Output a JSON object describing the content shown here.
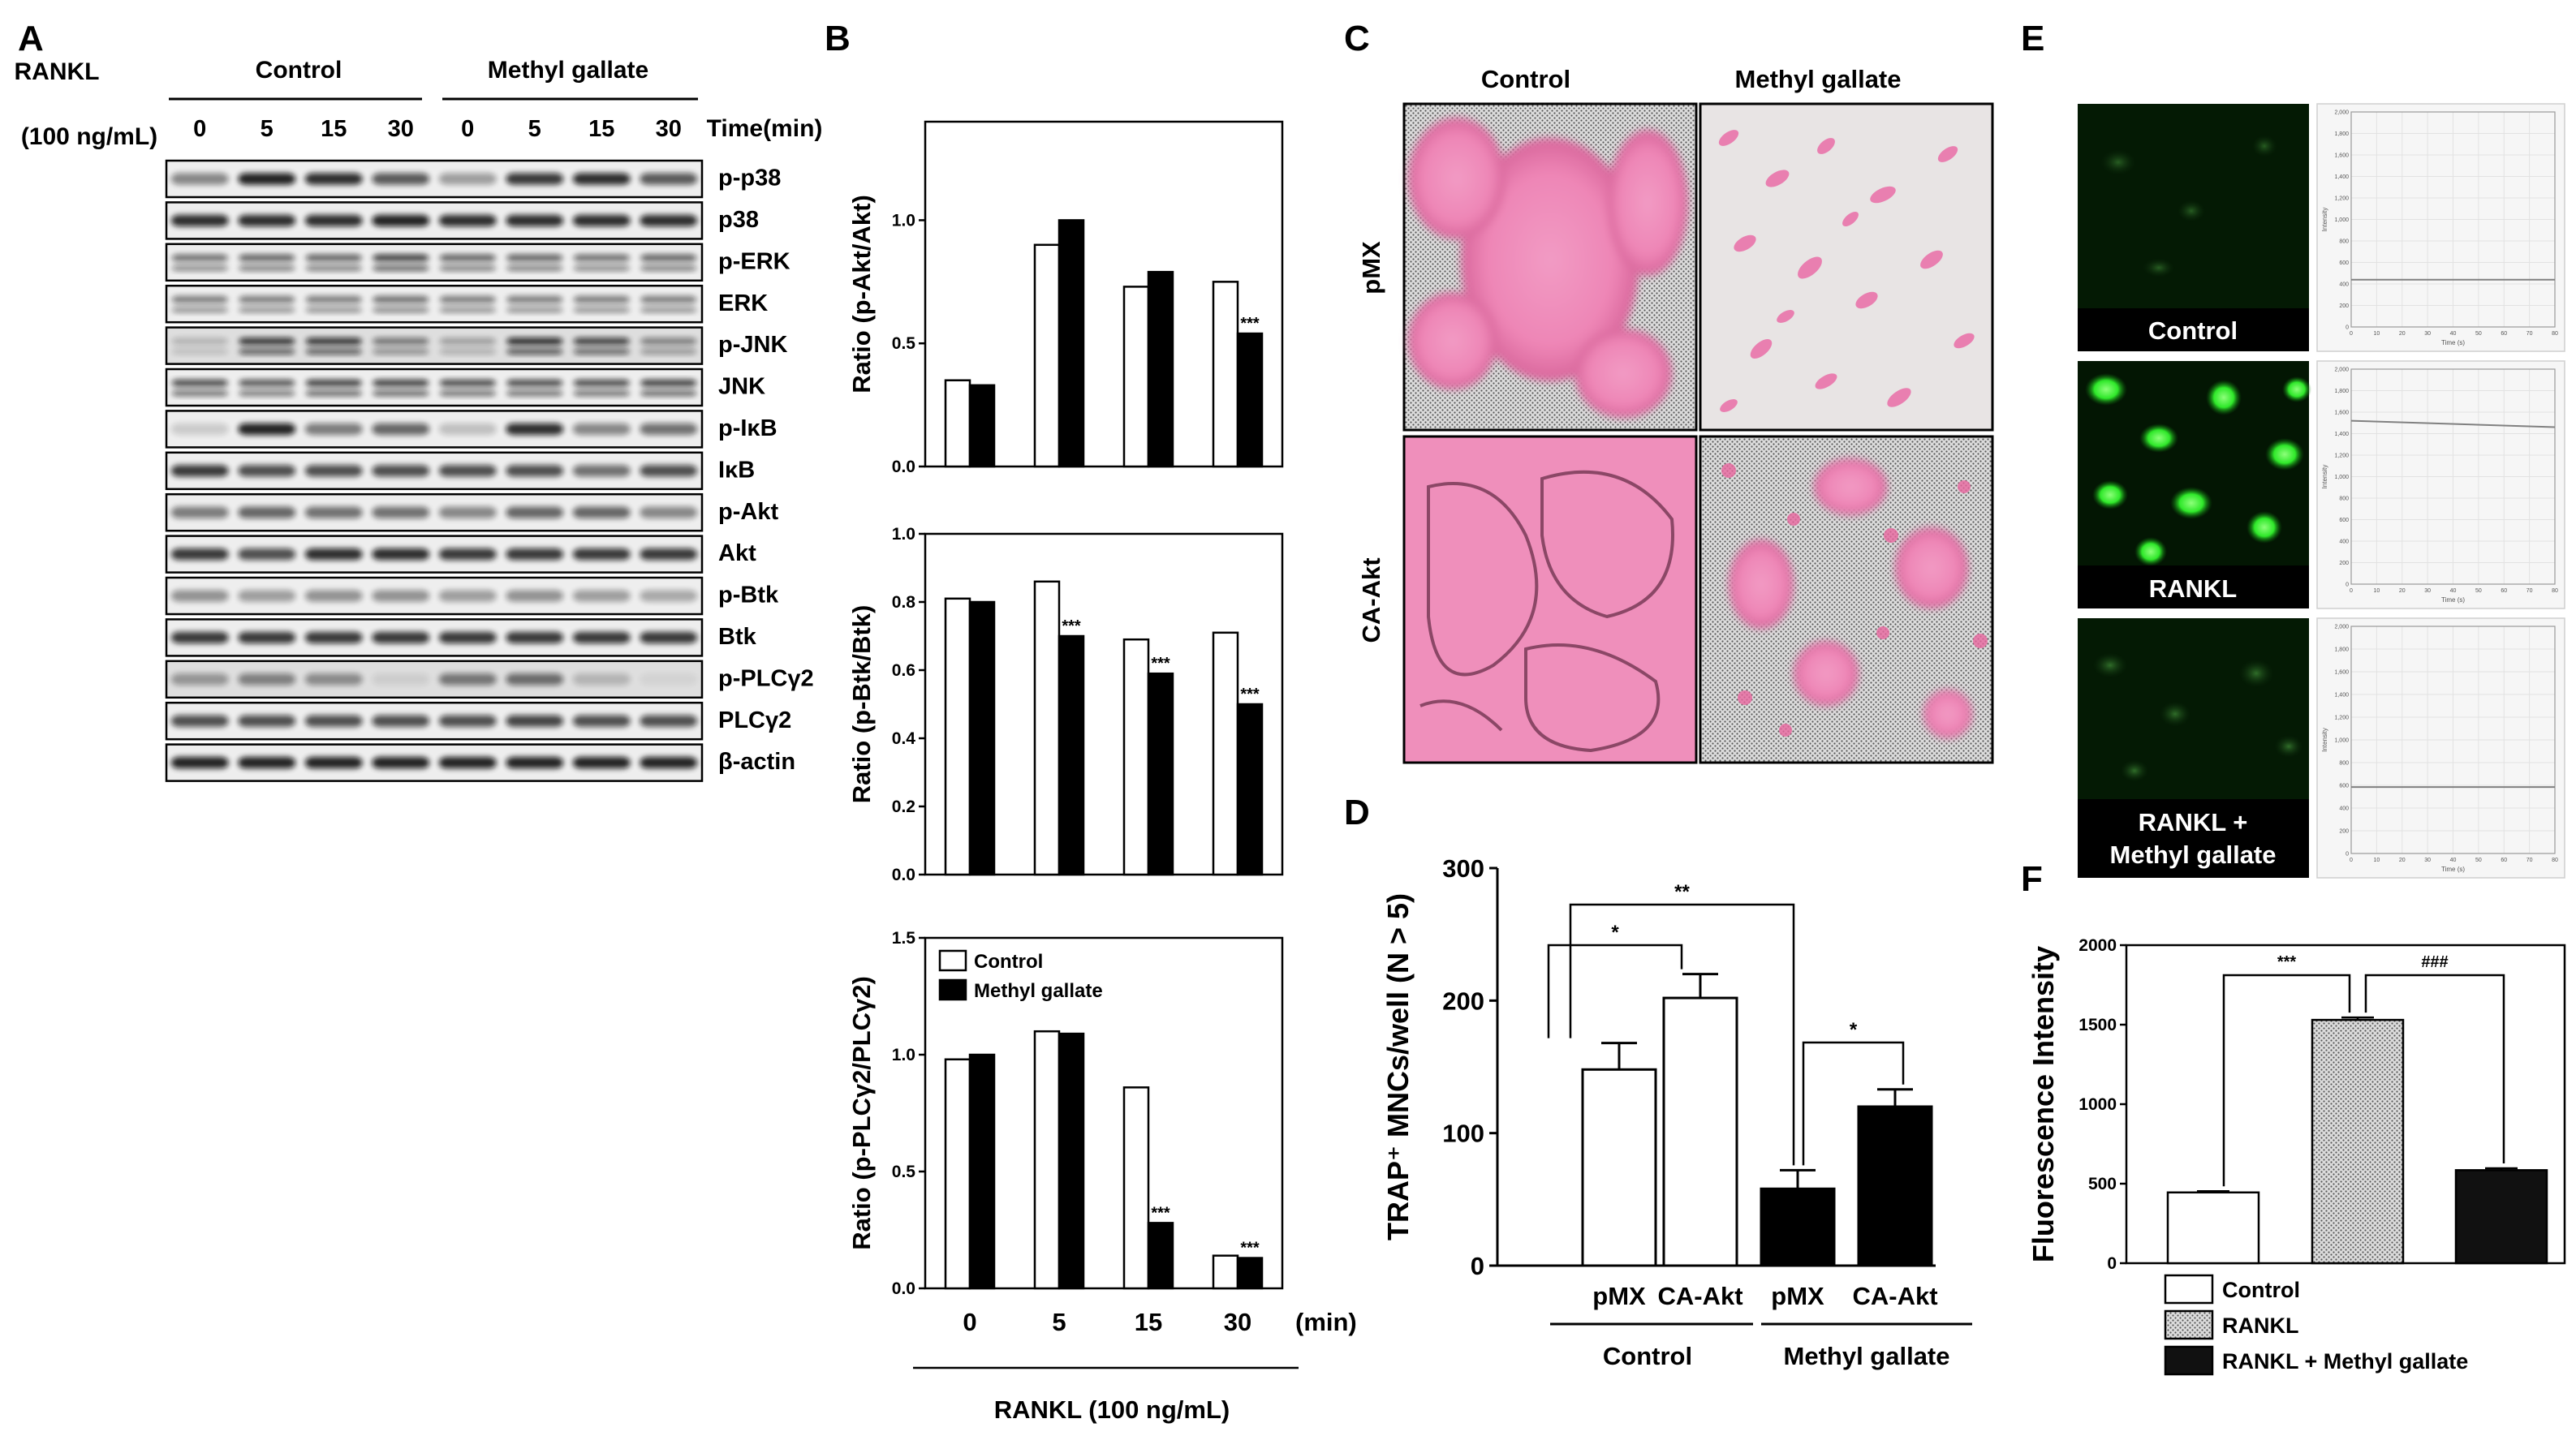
{
  "panel_labels": [
    "A",
    "B",
    "C",
    "D",
    "E",
    "F"
  ],
  "panelA": {
    "rankl_label": "RANKL",
    "rankl_conc": "(100 ng/mL)",
    "groups": [
      "Control",
      "Methyl gallate"
    ],
    "time_label": "Time(min)",
    "times": [
      "0",
      "5",
      "15",
      "30",
      "0",
      "5",
      "15",
      "30"
    ],
    "proteins": [
      "p-p38",
      "p38",
      "p-ERK",
      "ERK",
      "p-JNK",
      "JNK",
      "p-IκB",
      "IκB",
      "p-Akt",
      "Akt",
      "p-Btk",
      "Btk",
      "p-PLCγ2",
      "PLCγ2",
      "β-actin"
    ]
  },
  "panelC": {
    "columns": [
      "Control",
      "Methyl  gallate"
    ],
    "rows": [
      "pMX",
      "CA-Akt"
    ]
  },
  "panelE": {
    "labels": [
      "Control",
      "RANKL",
      "RANKL +",
      "Methyl gallate"
    ],
    "intensity_ticks": [
      "2,000",
      "1,800",
      "1,600",
      "1,400",
      "1,200",
      "1,000",
      "800",
      "600",
      "400",
      "200",
      "0"
    ],
    "time_ticks": [
      "0",
      "10",
      "20",
      "30",
      "40",
      "50",
      "60",
      "70",
      "80"
    ],
    "ylabel": "Intensity",
    "xlabel": "Time (s)"
  },
  "chart_data": [
    {
      "id": "B1",
      "type": "bar",
      "categories": [
        "0",
        "5",
        "15",
        "30"
      ],
      "series": [
        {
          "name": "Control",
          "values": [
            0.35,
            0.9,
            0.73,
            0.75
          ],
          "color": "#ffffff"
        },
        {
          "name": "Methyl gallate",
          "values": [
            0.33,
            1.0,
            0.79,
            0.54
          ],
          "color": "#000000"
        }
      ],
      "ylabel": "Ratio (p-Akt/Akt)",
      "ylim": [
        0,
        1.4
      ],
      "yticks": [
        "0.0",
        "0.5",
        "1.0"
      ],
      "annotations": [
        {
          "category": "30",
          "series": "Methyl gallate",
          "text": "***"
        }
      ]
    },
    {
      "id": "B2",
      "type": "bar",
      "categories": [
        "0",
        "5",
        "15",
        "30"
      ],
      "series": [
        {
          "name": "Control",
          "values": [
            0.81,
            0.86,
            0.69,
            0.71
          ],
          "color": "#ffffff"
        },
        {
          "name": "Methyl gallate",
          "values": [
            0.8,
            0.7,
            0.59,
            0.5
          ],
          "color": "#000000"
        }
      ],
      "ylabel": "Ratio (p-Btk/Btk)",
      "ylim": [
        0,
        1.0
      ],
      "yticks": [
        "0.0",
        "0.2",
        "0.4",
        "0.6",
        "0.8",
        "1.0"
      ],
      "annotations": [
        {
          "category": "5",
          "series": "Methyl gallate",
          "text": "***"
        },
        {
          "category": "15",
          "series": "Methyl gallate",
          "text": "***"
        },
        {
          "category": "30",
          "series": "Methyl gallate",
          "text": "***"
        }
      ]
    },
    {
      "id": "B3",
      "type": "bar",
      "categories": [
        "0",
        "5",
        "15",
        "30"
      ],
      "series": [
        {
          "name": "Control",
          "values": [
            0.98,
            1.1,
            0.86,
            0.14
          ],
          "color": "#ffffff"
        },
        {
          "name": "Methyl gallate",
          "values": [
            1.0,
            1.09,
            0.28,
            0.13
          ],
          "color": "#000000"
        }
      ],
      "ylabel": "Ratio (p-PLCγ2/PLCγ2)",
      "ylim": [
        0,
        1.5
      ],
      "yticks": [
        "0.0",
        "0.5",
        "1.0",
        "1.5"
      ],
      "xunit": "(min)",
      "xlabel": "RANKL (100 ng/mL)",
      "legend": [
        "Control",
        "Methyl gallate"
      ],
      "legend_position": "top-left",
      "annotations": [
        {
          "category": "15",
          "series": "Methyl gallate",
          "text": "***"
        },
        {
          "category": "30",
          "series": "Methyl gallate",
          "text": "***"
        }
      ]
    },
    {
      "id": "D",
      "type": "bar",
      "categories": [
        "pMX",
        "CA-Akt",
        "pMX",
        "CA-Akt"
      ],
      "groups": [
        "Control",
        "Methyl gallate"
      ],
      "values": [
        148,
        202,
        58,
        120
      ],
      "errors": [
        20,
        18,
        14,
        13
      ],
      "colors": [
        "#ffffff",
        "#ffffff",
        "#000000",
        "#000000"
      ],
      "ylabel": "TRAP⁺ MNCs/well (N > 5)",
      "ylim": [
        0,
        300
      ],
      "yticks": [
        "0",
        "100",
        "200",
        "300"
      ],
      "significance": [
        {
          "from": 0,
          "to": 1,
          "text": "*"
        },
        {
          "from": 0,
          "to": 2,
          "text": "**"
        },
        {
          "from": 2,
          "to": 3,
          "text": "*"
        }
      ]
    },
    {
      "id": "F",
      "type": "bar",
      "categories": [
        "Control",
        "RANKL",
        "RANKL + Methyl gallate"
      ],
      "values": [
        445,
        1530,
        585
      ],
      "errors": [
        8,
        15,
        12
      ],
      "ylabel": "Fluorescence Intensity",
      "ylim": [
        0,
        2000
      ],
      "yticks": [
        "0",
        "500",
        "1000",
        "1500",
        "2000"
      ],
      "legend": [
        "Control",
        "RANKL",
        "RANKL + Methyl gallate"
      ],
      "legend_position": "bottom",
      "significance": [
        {
          "from": 0,
          "to": 1,
          "text": "***"
        },
        {
          "from": 1,
          "to": 2,
          "text": "###"
        }
      ]
    }
  ]
}
